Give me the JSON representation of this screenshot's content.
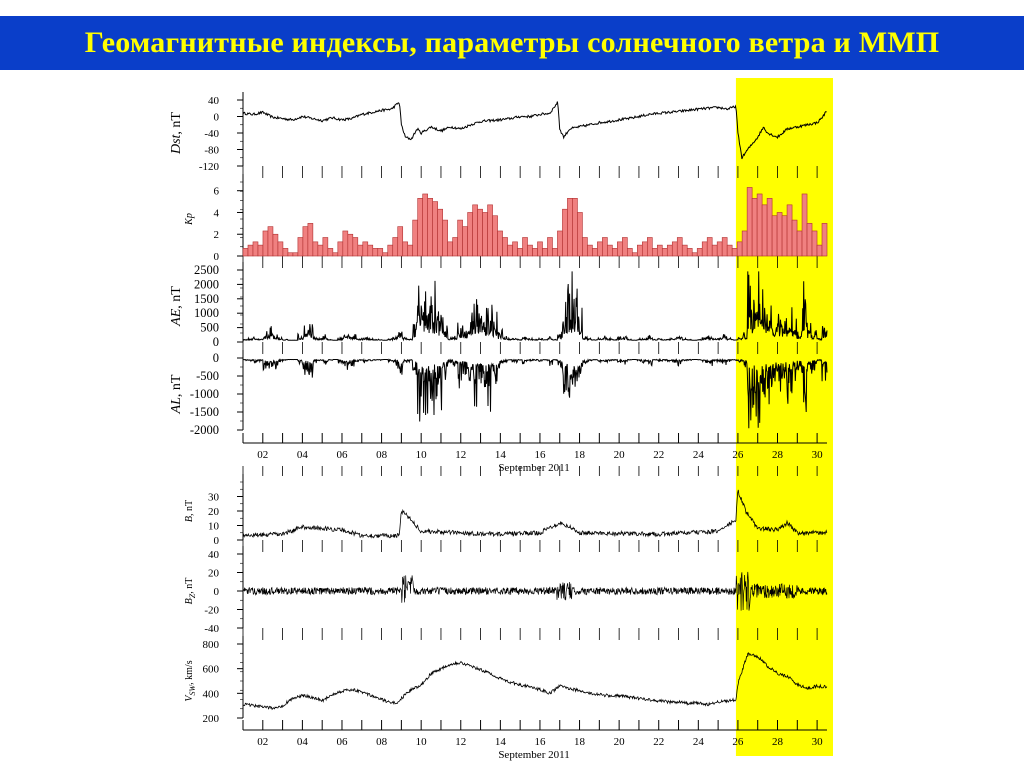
{
  "slide": {
    "title": "Геомагнитные индексы, параметры солнечного ветра и ММП"
  },
  "colors": {
    "highlight": "#ffff00",
    "kp_bar_fill": "#f08080",
    "title_bg": "#0a3ec9",
    "title_text": "#ffff00"
  },
  "chart_data": {
    "type": "line",
    "highlight_days": [
      25.9,
      30.5
    ],
    "panels": [
      {
        "id": "dst",
        "type": "line",
        "ylabel": "Dst, nT",
        "ylim": [
          -120,
          40
        ],
        "yticks": [
          "40",
          "0",
          "-40",
          "-80",
          "-120"
        ],
        "ytick_values": [
          40,
          0,
          -40,
          -80,
          -120
        ],
        "series": {
          "x": [
            1.0,
            1.5,
            2.0,
            2.5,
            3.0,
            3.5,
            4.0,
            4.5,
            5.0,
            5.5,
            6.0,
            6.5,
            7.0,
            7.5,
            8.0,
            8.5,
            8.9,
            9.0,
            9.2,
            9.5,
            9.8,
            10.0,
            10.5,
            11.0,
            11.5,
            12.0,
            12.5,
            13.0,
            13.5,
            14.0,
            14.5,
            15.0,
            15.5,
            16.0,
            16.5,
            16.9,
            17.0,
            17.2,
            17.5,
            18.0,
            18.5,
            19.0,
            19.5,
            20.0,
            20.5,
            21.0,
            21.5,
            22.0,
            22.5,
            23.0,
            23.5,
            24.0,
            24.5,
            25.0,
            25.5,
            25.9,
            26.0,
            26.2,
            26.5,
            27.0,
            27.3,
            27.5,
            28.0,
            28.5,
            29.0,
            29.5,
            30.0,
            30.3,
            30.5
          ],
          "y": [
            8,
            5,
            10,
            -2,
            -5,
            -8,
            0,
            -5,
            -10,
            -3,
            -8,
            -5,
            5,
            10,
            15,
            18,
            35,
            -20,
            -50,
            -55,
            -30,
            -40,
            -25,
            -35,
            -25,
            -30,
            -20,
            -12,
            -10,
            -8,
            -5,
            0,
            0,
            5,
            8,
            35,
            -30,
            -50,
            -30,
            -25,
            -20,
            -15,
            -12,
            -8,
            -5,
            0,
            5,
            8,
            10,
            12,
            15,
            18,
            20,
            22,
            18,
            25,
            -40,
            -100,
            -80,
            -50,
            -25,
            -40,
            -50,
            -30,
            -25,
            -20,
            -15,
            0,
            15
          ]
        }
      },
      {
        "id": "kp",
        "type": "bar",
        "ylabel": "Kp",
        "ylim": [
          0,
          6.8
        ],
        "yticks": [
          "6",
          "4",
          "2",
          "0"
        ],
        "ytick_values": [
          6,
          4,
          2,
          0
        ],
        "values": [
          0.7,
          1.0,
          1.3,
          1.0,
          2.3,
          2.7,
          2.0,
          1.3,
          0.7,
          0.3,
          0.3,
          1.7,
          2.7,
          3.0,
          1.3,
          1.0,
          1.7,
          0.7,
          0.3,
          1.3,
          2.3,
          2.0,
          1.7,
          1.0,
          1.3,
          1.0,
          0.7,
          0.7,
          0.3,
          1.0,
          1.7,
          2.7,
          1.3,
          1.0,
          3.3,
          5.3,
          5.7,
          5.3,
          5.0,
          4.3,
          3.3,
          1.3,
          1.7,
          3.3,
          2.7,
          4.0,
          4.7,
          4.3,
          4.0,
          4.7,
          3.7,
          2.3,
          1.7,
          1.0,
          1.3,
          0.7,
          1.7,
          1.0,
          0.7,
          1.3,
          0.7,
          1.7,
          0.7,
          2.3,
          4.3,
          5.3,
          5.3,
          4.0,
          1.7,
          1.0,
          0.7,
          1.3,
          1.7,
          1.0,
          0.7,
          1.3,
          1.7,
          0.7,
          0.3,
          1.0,
          1.3,
          1.7,
          0.7,
          1.0,
          0.7,
          1.0,
          1.3,
          1.7,
          1.0,
          0.7,
          0.3,
          0.7,
          1.3,
          1.7,
          1.0,
          1.3,
          1.7,
          1.0,
          0.7,
          1.3,
          2.3,
          6.3,
          5.3,
          5.7,
          4.7,
          5.3,
          3.7,
          4.0,
          3.7,
          4.7,
          3.3,
          2.3,
          5.7,
          3.0,
          2.3,
          1.0,
          3.0
        ],
        "categories_start_day": 1,
        "bar_hours": 6
      },
      {
        "id": "ae",
        "type": "line",
        "ylabel": "AE, nT",
        "ylim": [
          0,
          2500
        ],
        "yticks": [
          "2500",
          "2000",
          "1500",
          "1000",
          "500",
          "0"
        ],
        "ytick_values": [
          2500,
          2000,
          1500,
          1000,
          500,
          0
        ]
      },
      {
        "id": "al",
        "type": "line",
        "ylabel": "AL, nT",
        "ylim": [
          -2000,
          0
        ],
        "yticks": [
          "0",
          "-500",
          "-1000",
          "-1500",
          "-2000"
        ],
        "ytick_values": [
          0,
          -500,
          -1000,
          -1500,
          -2000
        ]
      },
      {
        "id": "b",
        "type": "line",
        "ylabel": "B, nT",
        "ylim": [
          0,
          40
        ],
        "yticks": [
          "30",
          "20",
          "10",
          "0"
        ],
        "ytick_values": [
          30,
          20,
          10,
          0
        ]
      },
      {
        "id": "bz",
        "type": "line",
        "ylabel": "BZ, nT",
        "ylim": [
          -40,
          40
        ],
        "yticks": [
          "40",
          "20",
          "0",
          "-20",
          "-40"
        ],
        "ytick_values": [
          40,
          20,
          0,
          -20,
          -40
        ]
      },
      {
        "id": "vsw",
        "type": "line",
        "ylabel": "VSW, km/s",
        "ylim": [
          200,
          800
        ],
        "yticks": [
          "800",
          "600",
          "400",
          "200"
        ],
        "ytick_values": [
          800,
          600,
          400,
          200
        ],
        "series": {
          "x": [
            1.0,
            1.5,
            2.0,
            2.5,
            3.0,
            3.5,
            4.0,
            4.5,
            5.0,
            5.5,
            6.0,
            6.5,
            7.0,
            7.5,
            8.0,
            8.5,
            8.9,
            9.0,
            9.5,
            10.0,
            10.5,
            11.0,
            11.5,
            12.0,
            12.5,
            13.0,
            13.5,
            14.0,
            14.5,
            15.0,
            15.5,
            16.0,
            16.5,
            17.0,
            17.5,
            18.0,
            18.5,
            19.0,
            19.5,
            20.0,
            20.5,
            21.0,
            21.5,
            22.0,
            22.5,
            23.0,
            23.5,
            24.0,
            24.5,
            25.0,
            25.5,
            25.9,
            26.0,
            26.5,
            27.0,
            27.5,
            28.0,
            28.5,
            29.0,
            29.5,
            30.0,
            30.5
          ],
          "y": [
            310,
            300,
            290,
            280,
            300,
            360,
            380,
            370,
            340,
            390,
            420,
            430,
            410,
            380,
            350,
            320,
            330,
            360,
            430,
            470,
            560,
            600,
            640,
            650,
            620,
            590,
            560,
            520,
            490,
            470,
            450,
            430,
            400,
            460,
            440,
            420,
            400,
            390,
            380,
            380,
            370,
            360,
            350,
            340,
            330,
            330,
            320,
            320,
            310,
            330,
            340,
            350,
            480,
            720,
            700,
            620,
            560,
            540,
            470,
            440,
            460,
            450
          ]
        }
      }
    ],
    "xaxis": {
      "xlabel": "September 2011",
      "xlim": [
        1,
        30.5
      ],
      "ticks": [
        "02",
        "04",
        "06",
        "08",
        "10",
        "12",
        "14",
        "16",
        "18",
        "20",
        "22",
        "24",
        "26",
        "28",
        "30"
      ],
      "tick_values": [
        2,
        4,
        6,
        8,
        10,
        12,
        14,
        16,
        18,
        20,
        22,
        24,
        26,
        28,
        30
      ]
    }
  }
}
